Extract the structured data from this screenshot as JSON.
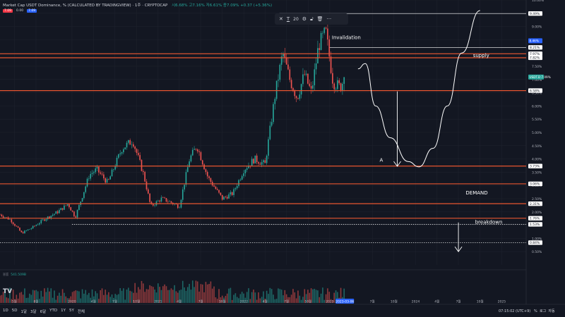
{
  "header": {
    "title": "Market Cap USDT Dominance, % (CALCULATED BY TRADINGVIEW) · 1주 · CRYPTOCAP",
    "ohlc": "시6.68% 고7.16% 저6.61% 종7.09% +0.37 (+5.36%)",
    "pills": [
      "7.09",
      "0.00",
      "7.09"
    ]
  },
  "toolbar": {
    "close": "✕",
    "text_tool": "T",
    "size": "20",
    "more": "···"
  },
  "volume": {
    "label": "볼륨",
    "value": "541.509B"
  },
  "logo": "TV",
  "timeframes": [
    "1D",
    "5D",
    "1달",
    "3달",
    "6달",
    "YTD",
    "1Y",
    "5Y",
    "전체"
  ],
  "status": {
    "time": "07:15:02 (UTC+9)",
    "mode": "%",
    "log": "로그",
    "auto": "자동"
  },
  "colors": {
    "bg": "#131722",
    "up": "#26a69a",
    "down": "#ef5350",
    "level": "#e8552f",
    "grid": "#1e222d",
    "text": "#d1d4dc"
  },
  "chart_data": {
    "type": "candlestick",
    "symbol": "USDT.D",
    "interval": "1주",
    "ylim": [
      0,
      10.0
    ],
    "yticks": [
      0.5,
      1.0,
      1.5,
      2.0,
      2.5,
      3.0,
      3.5,
      4.0,
      4.5,
      5.0,
      5.5,
      6.0,
      6.5,
      7.0,
      7.5,
      8.0,
      8.5,
      9.0,
      9.5,
      10.0
    ],
    "ytick_labels": [
      "0.50%",
      "1.00%",
      "1.50%",
      "2.00%",
      "2.50%",
      "3.00%",
      "3.50%",
      "4.00%",
      "4.50%",
      "5.00%",
      "5.50%",
      "6.00%",
      "6.50%",
      "7.00%",
      "7.50%",
      "8.00%",
      "8.50%",
      "9.00%",
      "9.50%",
      "10.00%"
    ],
    "x_start": "2019-03-01",
    "x_end": "2025-04-15",
    "xticks": [
      {
        "date": "2019-05-01",
        "label": "5월"
      },
      {
        "date": "2019-08-01",
        "label": "8월"
      },
      {
        "date": "2020-01-01",
        "label": "2020"
      },
      {
        "date": "2020-04-01",
        "label": "4월"
      },
      {
        "date": "2020-07-01",
        "label": "7월"
      },
      {
        "date": "2020-10-01",
        "label": "10월"
      },
      {
        "date": "2021-01-01",
        "label": "2021"
      },
      {
        "date": "2021-04-01",
        "label": "4월"
      },
      {
        "date": "2021-07-01",
        "label": "7월"
      },
      {
        "date": "2021-10-01",
        "label": "10월"
      },
      {
        "date": "2022-01-01",
        "label": "2022"
      },
      {
        "date": "2022-04-01",
        "label": "4월"
      },
      {
        "date": "2022-07-01",
        "label": "7월"
      },
      {
        "date": "2022-10-01",
        "label": "10월"
      },
      {
        "date": "2023-01-01",
        "label": "2023"
      },
      {
        "date": "2023-07-01",
        "label": "7월"
      },
      {
        "date": "2023-10-01",
        "label": "10월"
      },
      {
        "date": "2024-01-01",
        "label": "2024"
      },
      {
        "date": "2024-04-01",
        "label": "4월"
      },
      {
        "date": "2024-07-01",
        "label": "7월"
      },
      {
        "date": "2024-10-01",
        "label": "10월"
      },
      {
        "date": "2025-01-01",
        "label": "2025"
      }
    ],
    "current_date_label": "2023-03-06",
    "series_anchor_points": [
      {
        "date": "2019-03-01",
        "value": 1.9
      },
      {
        "date": "2019-04-15",
        "value": 1.7
      },
      {
        "date": "2019-06-01",
        "value": 1.2
      },
      {
        "date": "2019-07-15",
        "value": 1.4
      },
      {
        "date": "2019-09-01",
        "value": 1.7
      },
      {
        "date": "2019-11-01",
        "value": 2.0
      },
      {
        "date": "2019-12-15",
        "value": 2.3
      },
      {
        "date": "2020-01-15",
        "value": 1.8
      },
      {
        "date": "2020-03-15",
        "value": 3.4
      },
      {
        "date": "2020-04-15",
        "value": 3.6
      },
      {
        "date": "2020-06-01",
        "value": 3.1
      },
      {
        "date": "2020-08-01",
        "value": 4.4
      },
      {
        "date": "2020-09-15",
        "value": 4.7
      },
      {
        "date": "2020-11-01",
        "value": 3.4
      },
      {
        "date": "2020-12-01",
        "value": 2.2
      },
      {
        "date": "2021-01-15",
        "value": 2.5
      },
      {
        "date": "2021-02-15",
        "value": 2.4
      },
      {
        "date": "2021-04-01",
        "value": 2.2
      },
      {
        "date": "2021-05-15",
        "value": 4.0
      },
      {
        "date": "2021-06-15",
        "value": 4.5
      },
      {
        "date": "2021-08-01",
        "value": 3.3
      },
      {
        "date": "2021-10-01",
        "value": 2.5
      },
      {
        "date": "2021-11-15",
        "value": 2.7
      },
      {
        "date": "2022-01-01",
        "value": 3.6
      },
      {
        "date": "2022-02-15",
        "value": 4.0
      },
      {
        "date": "2022-04-01",
        "value": 3.8
      },
      {
        "date": "2022-05-15",
        "value": 6.5
      },
      {
        "date": "2022-06-15",
        "value": 8.0
      },
      {
        "date": "2022-07-15",
        "value": 7.0
      },
      {
        "date": "2022-08-15",
        "value": 6.3
      },
      {
        "date": "2022-09-15",
        "value": 7.2
      },
      {
        "date": "2022-10-15",
        "value": 6.5
      },
      {
        "date": "2022-11-15",
        "value": 8.3
      },
      {
        "date": "2022-12-15",
        "value": 8.8
      },
      {
        "date": "2023-01-15",
        "value": 6.9
      },
      {
        "date": "2023-02-15",
        "value": 6.7
      },
      {
        "date": "2023-03-06",
        "value": 7.09
      }
    ],
    "horizontal_levels": [
      {
        "value": 9.49,
        "label": "9.49%",
        "color": "#ffffff",
        "style": "solid",
        "extend_from": "2022-06-01"
      },
      {
        "value": 8.21,
        "label": "8.21%",
        "color": "#ffffff",
        "style": "solid",
        "extend_from": "2023-01-01"
      },
      {
        "value": 7.97,
        "label": "7.97%",
        "color": "#e8552f",
        "style": "solid"
      },
      {
        "value": 7.82,
        "label": "7.82%",
        "color": "#e8552f",
        "style": "solid"
      },
      {
        "value": 6.58,
        "label": "6.58%",
        "color": "#e8552f",
        "style": "solid"
      },
      {
        "value": 3.73,
        "label": "3.73%",
        "color": "#e8552f",
        "style": "solid"
      },
      {
        "value": 3.06,
        "label": "3.06%",
        "color": "#e8552f",
        "style": "solid"
      },
      {
        "value": 2.31,
        "label": "2.31%",
        "color": "#e8552f",
        "style": "solid"
      },
      {
        "value": 1.76,
        "label": "1.76%",
        "color": "#e8552f",
        "style": "solid"
      },
      {
        "value": 1.53,
        "label": "1.53%",
        "color": "#ffffff",
        "style": "dotted",
        "extend_from": "2020-01-01"
      },
      {
        "value": 0.84,
        "label": "0.84%",
        "color": "#ffffff",
        "style": "dotted"
      }
    ],
    "price_tags": [
      {
        "value": 8.46,
        "label": "8.46%",
        "color": "#2962ff"
      },
      {
        "value": 7.09,
        "label": "USDT.D 7.09%",
        "color": "#26a69a"
      }
    ],
    "annotations": [
      {
        "text": "Invalidation",
        "date": "2023-01-10",
        "value": 8.52
      },
      {
        "text": "supply",
        "date": "2024-09-01",
        "value": 7.84
      },
      {
        "text": "A",
        "date": "2023-08-01",
        "value": 3.9
      },
      {
        "text": "DEMAND",
        "date": "2024-08-01",
        "value": 2.66
      },
      {
        "text": "breakdown",
        "date": "2024-09-10",
        "value": 1.56
      }
    ],
    "arrows": [
      {
        "from": {
          "date": "2023-10-15",
          "value": 6.55
        },
        "to": {
          "date": "2023-10-15",
          "value": 3.72
        }
      },
      {
        "from": {
          "date": "2024-07-01",
          "value": 1.6
        },
        "to": {
          "date": "2024-07-01",
          "value": 0.5
        }
      }
    ],
    "projection_path": [
      {
        "date": "2023-05-01",
        "value": 7.4
      },
      {
        "date": "2023-06-01",
        "value": 7.6
      },
      {
        "date": "2023-07-15",
        "value": 6.0
      },
      {
        "date": "2023-09-15",
        "value": 4.8
      },
      {
        "date": "2023-12-01",
        "value": 3.9
      },
      {
        "date": "2024-01-15",
        "value": 3.7
      },
      {
        "date": "2024-03-15",
        "value": 4.4
      },
      {
        "date": "2024-05-15",
        "value": 6.0
      },
      {
        "date": "2024-07-15",
        "value": 8.0
      },
      {
        "date": "2024-10-01",
        "value": 9.6
      }
    ]
  }
}
